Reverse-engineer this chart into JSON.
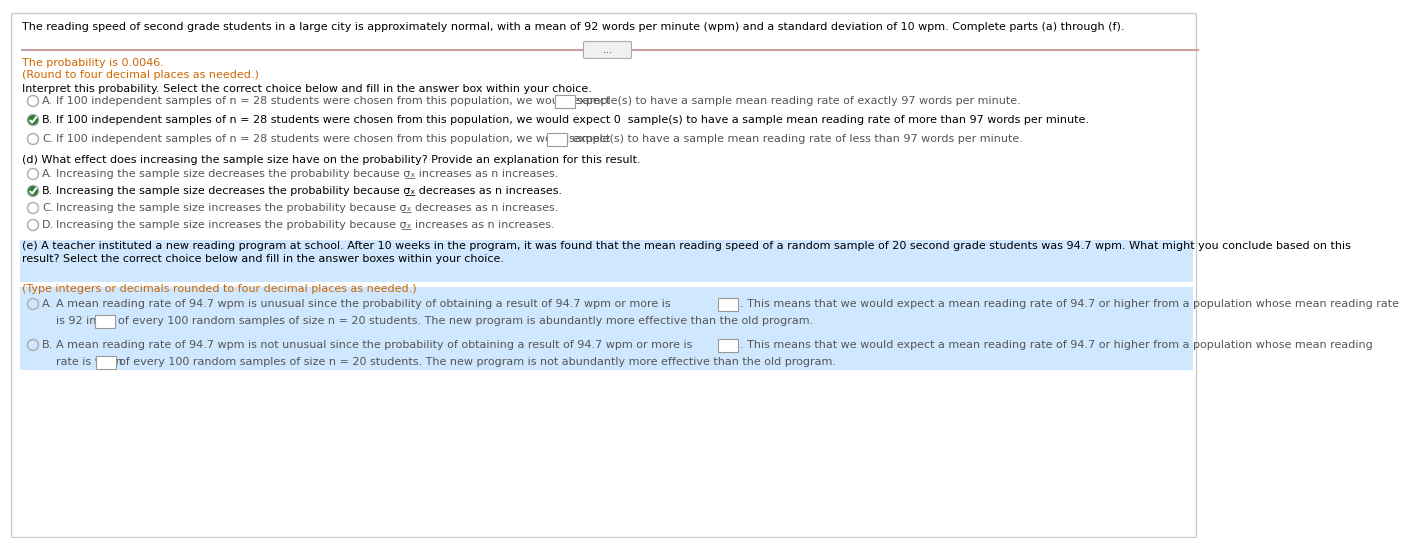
{
  "title_text": "The reading speed of second grade students in a large city is approximately normal, with a mean of 92 words per minute (wpm) and a standard deviation of 10 wpm. Complete parts (a) through (f).",
  "prob_partial": "The probability is 0.0046.",
  "round_text": "(Round to four decimal places as needed.)",
  "interpret_text": "Interpret this probability. Select the correct choice below and fill in the answer box within your choice.",
  "optA_pre": "If 100 independent samples of n = 28 students were chosen from this population, we would expect",
  "optA_post": "sample(s) to have a sample mean reading rate of exactly 97 words per minute.",
  "optB_full": "If 100 independent samples of n = 28 students were chosen from this population, we would expect 0  sample(s) to have a sample mean reading rate of more than 97 words per minute.",
  "optC_pre": "If 100 independent samples of n = 28 students were chosen from this population, we would expect",
  "optC_post": "sample(s) to have a sample mean reading rate of less than 97 words per minute.",
  "d_header": "(d) What effect does increasing the sample size have on the probability? Provide an explanation for this result.",
  "dA_text": "Increasing the sample size decreases the probability because σ͟ₓ increases as n increases.",
  "dB_text": "Increasing the sample size decreases the probability because σ͟ₓ decreases as n increases.",
  "dC_text": "Increasing the sample size increases the probability because σ͟ₓ decreases as n increases.",
  "dD_text": "Increasing the sample size increases the probability because σ͟ₓ increases as n increases.",
  "e_header1": "(e) A teacher instituted a new reading program at school. After 10 weeks in the program, it was found that the mean reading speed of a random sample of 20 second grade students was 94.7 wpm. What might you conclude based on this",
  "e_header2": "result? Select the correct choice below and fill in the answer boxes within your choice.",
  "e_type": "(Type integers or decimals rounded to four decimal places as needed.)",
  "eA_l1pre": "A mean reading rate of 94.7 wpm is unusual since the probability of obtaining a result of 94.7 wpm or more is",
  "eA_l1post": ". This means that we would expect a mean reading rate of 94.7 or higher from a population whose mean reading rate",
  "eA_l2pre": "is 92 in",
  "eA_l2post": "of every 100 random samples of size n = 20 students. The new program is abundantly more effective than the old program.",
  "eB_l1pre": "A mean reading rate of 94.7 wpm is not unusual since the probability of obtaining a result of 94.7 wpm or more is",
  "eB_l1post": ". This means that we would expect a mean reading rate of 94.7 or higher from a population whose mean reading",
  "eB_l2pre": "rate is 92 in",
  "eB_l2post": "of every 100 random samples of size n = 20 students. The new program is not abundantly more effective than the old program.",
  "bg_color": "#ffffff",
  "text_color": "#000000",
  "gray_color": "#555555",
  "orange_color": "#cc6600",
  "highlight_color": "#d0e8ff",
  "check_color": "#2e7d32",
  "divider_color": "#c9a0a0",
  "btn_color": "#f0f0f0",
  "box_border_color": "#999999"
}
